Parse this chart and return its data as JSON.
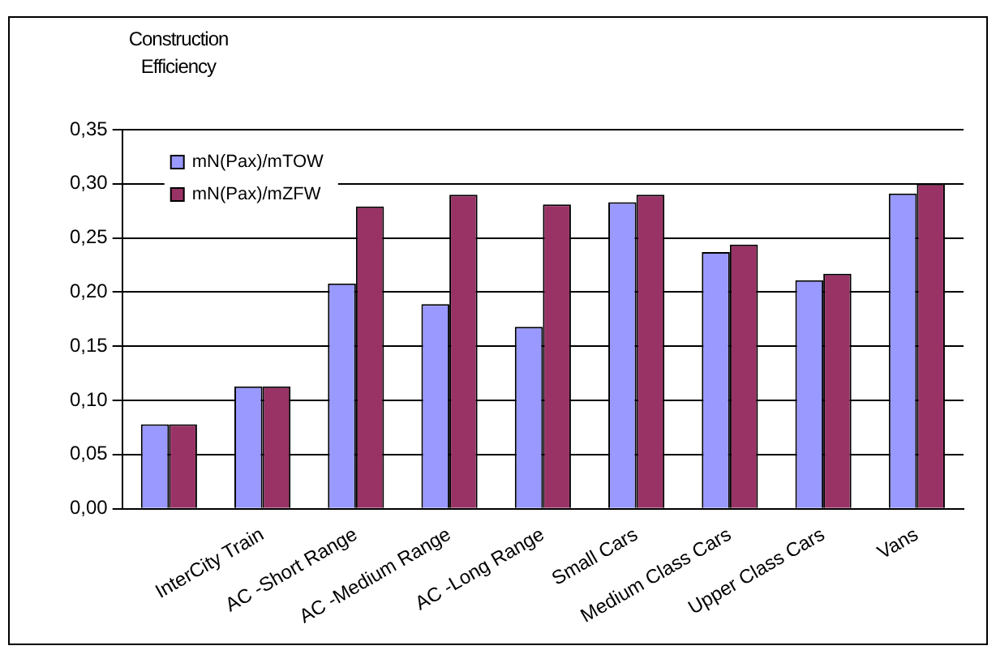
{
  "chart_data": {
    "type": "bar",
    "ylabel": "Construction Efficiency",
    "categories": [
      null,
      "InterCity Train",
      "AC -Short Range",
      "AC -Medium Range",
      "AC -Long Range",
      "Small Cars",
      "Medium Class Cars",
      "Upper Class Cars",
      "Vans"
    ],
    "series": [
      {
        "name": "mN(Pax)/mTOW",
        "color": "#9999ff",
        "values": [
          0.078,
          0.113,
          0.208,
          0.189,
          0.168,
          0.283,
          0.237,
          0.211,
          0.291
        ]
      },
      {
        "name": "mN(Pax)/mZFW",
        "color": "#993366",
        "values": [
          0.078,
          0.113,
          0.279,
          0.29,
          0.281,
          0.29,
          0.244,
          0.217,
          0.3
        ]
      }
    ],
    "ylim": [
      0,
      0.35
    ],
    "yticks": [
      {
        "value": 0,
        "label": "0,00"
      },
      {
        "value": 0.05,
        "label": "0,05"
      },
      {
        "value": 0.1,
        "label": "0,10"
      },
      {
        "value": 0.15,
        "label": "0,15"
      },
      {
        "value": 0.2,
        "label": "0,20"
      },
      {
        "value": 0.25,
        "label": "0,25"
      },
      {
        "value": 0.3,
        "label": "0,30"
      },
      {
        "value": 0.35,
        "label": "0,35"
      }
    ],
    "grid": "y",
    "legend": "top left"
  }
}
